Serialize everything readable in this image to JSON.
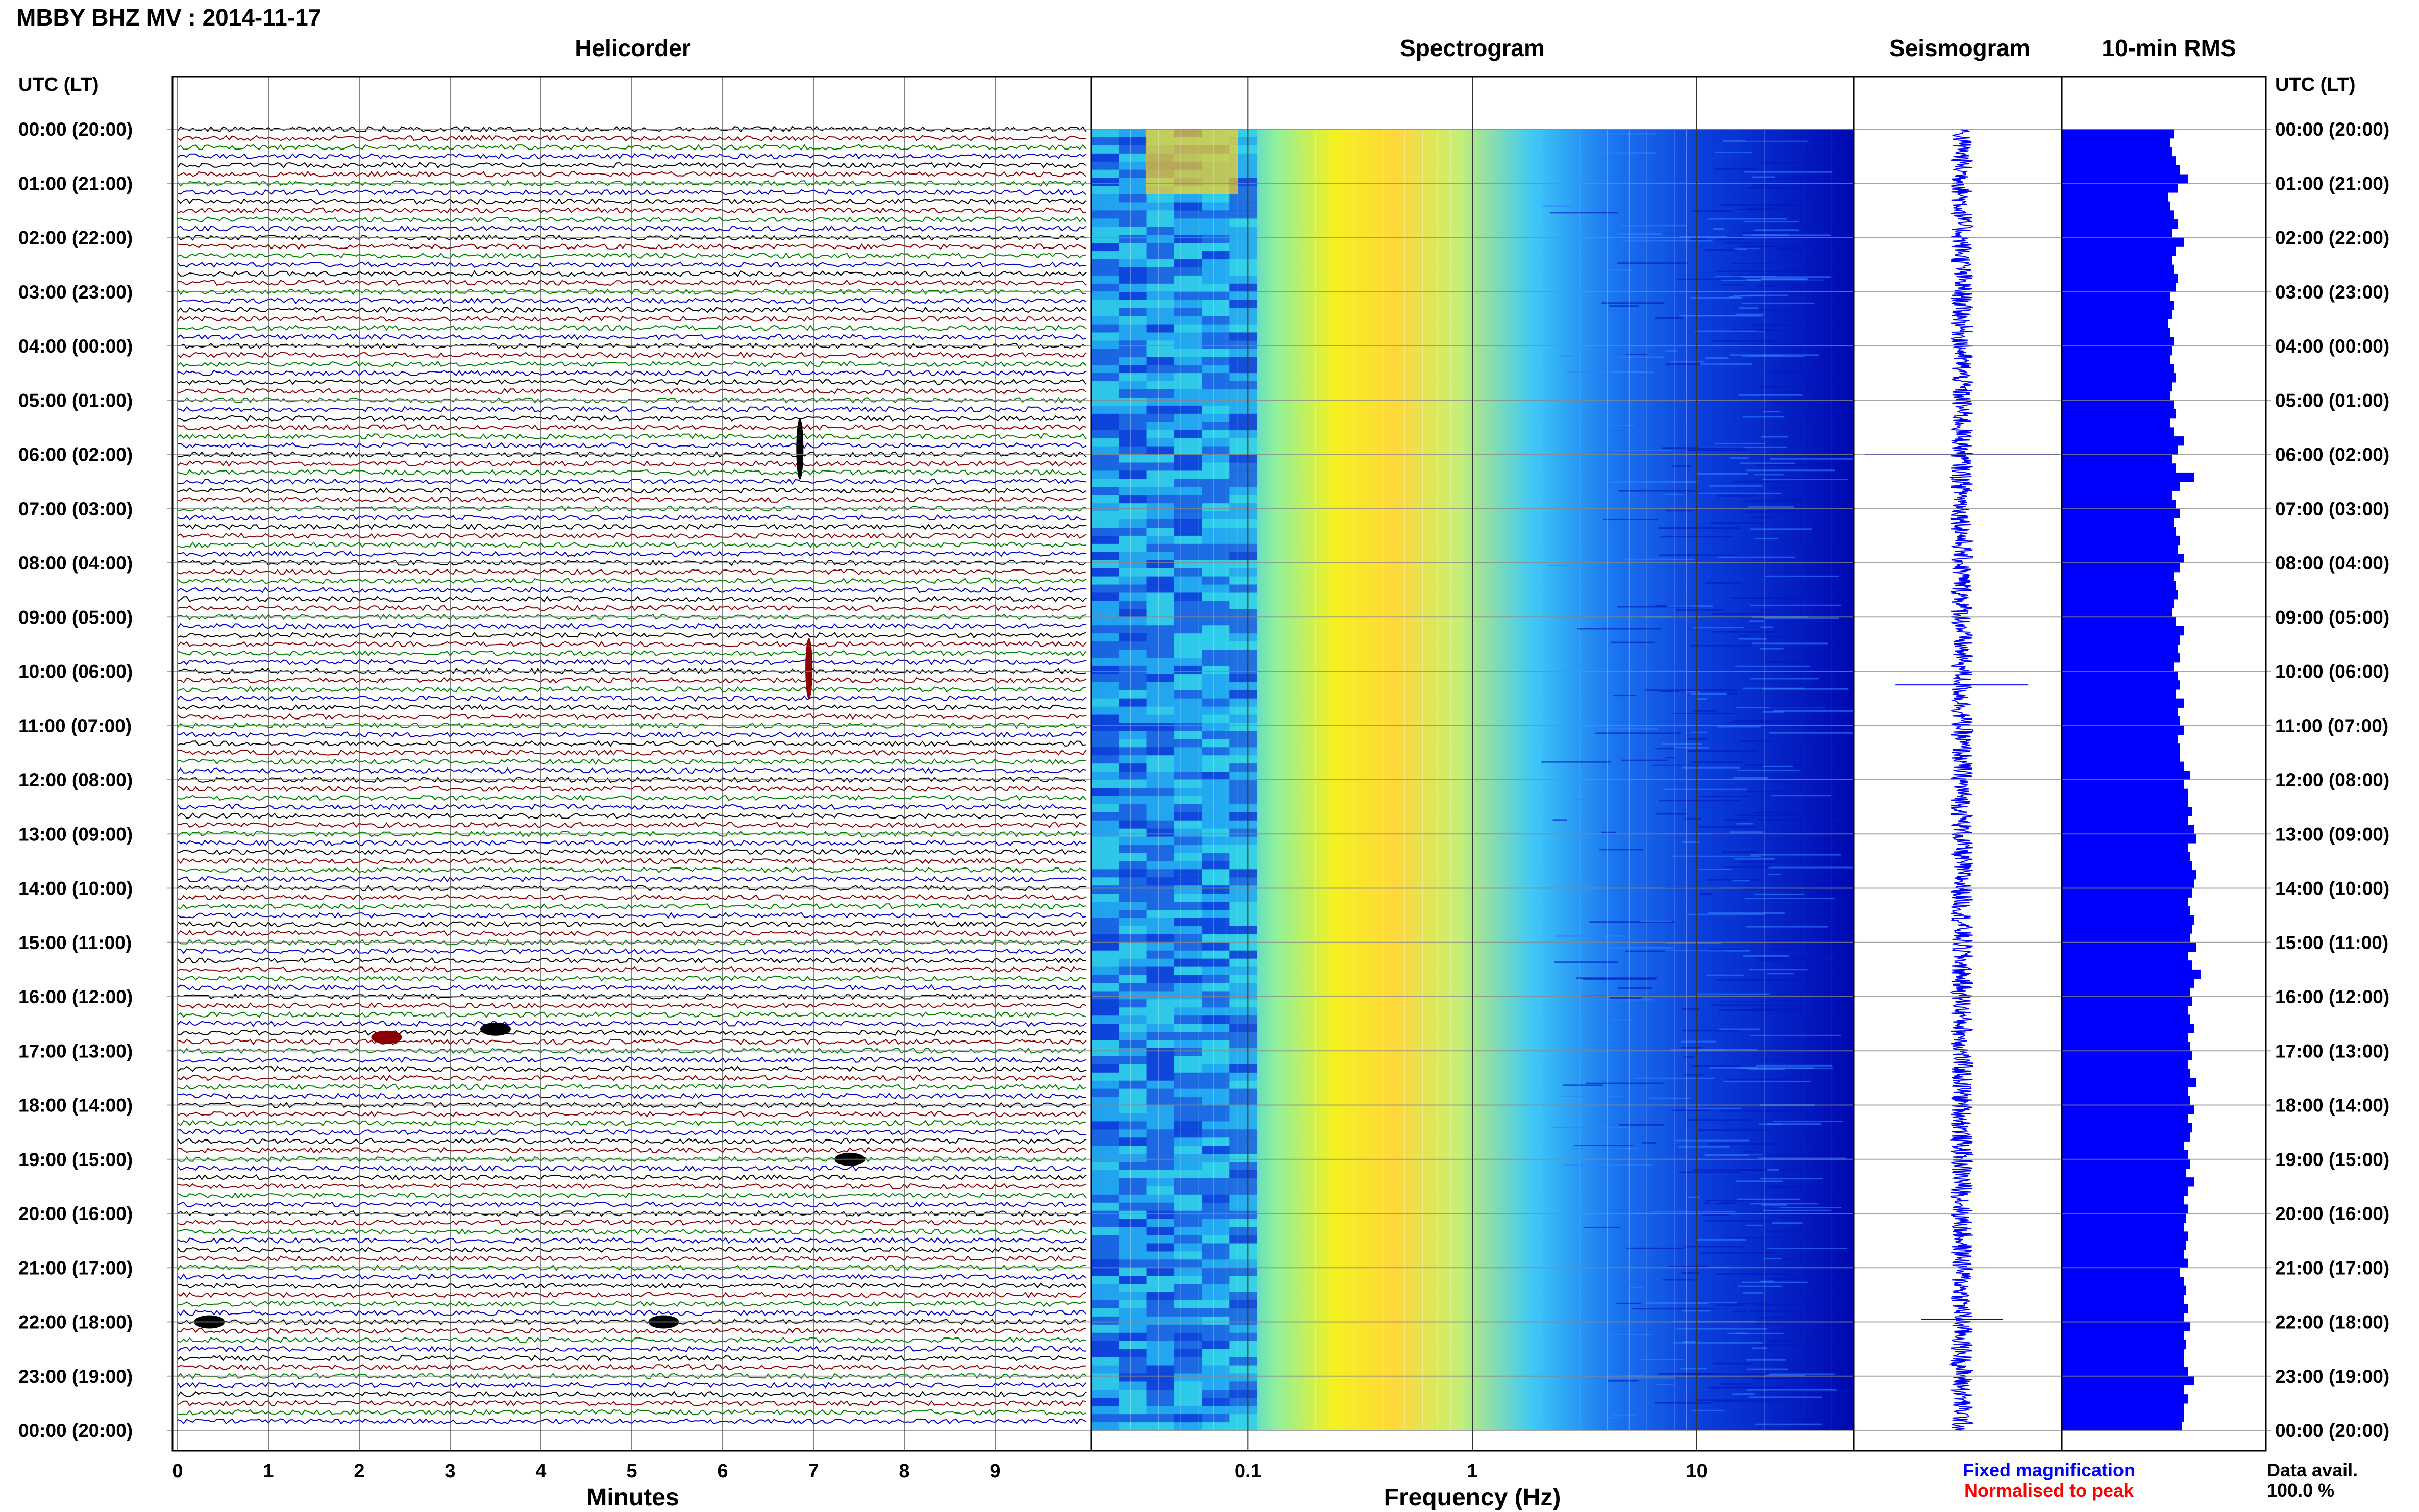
{
  "page_title": "MBBY BHZ MV : 2014-11-17",
  "panels": {
    "helicorder": "Helicorder",
    "spectrogram": "Spectrogram",
    "seismogram": "Seismogram",
    "rms": "10-min RMS"
  },
  "axis_headers": {
    "left": "UTC (LT)",
    "right": "UTC (LT)"
  },
  "row_labels": [
    "00:00 (20:00)",
    "01:00 (21:00)",
    "02:00 (22:00)",
    "03:00 (23:00)",
    "04:00 (00:00)",
    "05:00 (01:00)",
    "06:00 (02:00)",
    "07:00 (03:00)",
    "08:00 (04:00)",
    "09:00 (05:00)",
    "10:00 (06:00)",
    "11:00 (07:00)",
    "12:00 (08:00)",
    "13:00 (09:00)",
    "14:00 (10:00)",
    "15:00 (11:00)",
    "16:00 (12:00)",
    "17:00 (13:00)",
    "18:00 (14:00)",
    "19:00 (15:00)",
    "20:00 (16:00)",
    "21:00 (17:00)",
    "22:00 (18:00)",
    "23:00 (19:00)",
    "00:00 (20:00)"
  ],
  "footer": {
    "minutes_label": "Minutes",
    "frequency_label": "Frequency (Hz)",
    "legend_fixed": "Fixed magnification",
    "legend_normalised": "Normalised to peak",
    "data_avail_label": "Data avail.",
    "data_avail_value": "100.0 %"
  },
  "colors": {
    "trace_cycle": [
      "#000000",
      "#8b0000",
      "#008000",
      "#0000cc"
    ],
    "legend_fixed": "#0000ff",
    "legend_normalised": "#ff0000",
    "rms_bars": "#0000ff",
    "seismogram": "#0000ff"
  },
  "chart_data": [
    {
      "type": "line",
      "name": "helicorder",
      "xlabel": "Minutes",
      "x_ticks": [
        "0",
        "1",
        "2",
        "3",
        "4",
        "5",
        "6",
        "7",
        "8",
        "9"
      ],
      "xlim": [
        0,
        10
      ],
      "rows_per_hour": 6,
      "events": [
        {
          "hour": 5.9,
          "minute": 6.85,
          "amplitude": "large",
          "color": "#000000"
        },
        {
          "hour": 9.95,
          "minute": 6.95,
          "amplitude": "large",
          "color": "#8b0000"
        },
        {
          "hour": 16.6,
          "minute": 3.5,
          "amplitude": "medium",
          "color": "#000000"
        },
        {
          "hour": 16.75,
          "minute": 2.3,
          "amplitude": "medium",
          "color": "#8b0000"
        },
        {
          "hour": 19.0,
          "minute": 7.4,
          "amplitude": "medium",
          "color": "#000000"
        },
        {
          "hour": 22.0,
          "minute": 0.35,
          "amplitude": "medium",
          "color": "#000000"
        },
        {
          "hour": 22.0,
          "minute": 5.35,
          "amplitude": "medium",
          "color": "#000000"
        }
      ]
    },
    {
      "type": "heatmap",
      "name": "spectrogram",
      "xlabel": "Frequency (Hz)",
      "x_scale": "log",
      "xlim": [
        0.02,
        50
      ],
      "x_ticks": [
        "0.1",
        "1",
        "10"
      ],
      "peak_band_hz": [
        0.15,
        0.8
      ],
      "colormap": [
        "#0000c8",
        "#0050ff",
        "#00c8ff",
        "#80ff80",
        "#ffff00",
        "#ff8000"
      ]
    },
    {
      "type": "line",
      "name": "seismogram",
      "spikes_hour": [
        6.0,
        10.25,
        21.95
      ]
    },
    {
      "type": "bar",
      "name": "10-min RMS",
      "orientation": "horizontal",
      "xlim": [
        0,
        1
      ],
      "values": [
        0.55,
        0.53,
        0.54,
        0.56,
        0.58,
        0.62,
        0.57,
        0.52,
        0.53,
        0.55,
        0.57,
        0.54,
        0.6,
        0.56,
        0.54,
        0.55,
        0.57,
        0.56,
        0.53,
        0.55,
        0.54,
        0.52,
        0.53,
        0.55,
        0.54,
        0.53,
        0.55,
        0.56,
        0.54,
        0.53,
        0.55,
        0.56,
        0.53,
        0.55,
        0.6,
        0.57,
        0.54,
        0.56,
        0.65,
        0.58,
        0.54,
        0.56,
        0.58,
        0.55,
        0.56,
        0.58,
        0.57,
        0.6,
        0.58,
        0.55,
        0.56,
        0.57,
        0.55,
        0.54,
        0.56,
        0.6,
        0.58,
        0.57,
        0.58,
        0.55,
        0.57,
        0.58,
        0.56,
        0.6,
        0.57,
        0.58,
        0.6,
        0.57,
        0.58,
        0.58,
        0.6,
        0.63,
        0.6,
        0.62,
        0.62,
        0.64,
        0.62,
        0.65,
        0.66,
        0.62,
        0.63,
        0.64,
        0.66,
        0.65,
        0.64,
        0.62,
        0.63,
        0.65,
        0.64,
        0.63,
        0.66,
        0.62,
        0.64,
        0.68,
        0.65,
        0.63,
        0.64,
        0.62,
        0.63,
        0.65,
        0.62,
        0.63,
        0.64,
        0.62,
        0.63,
        0.66,
        0.62,
        0.63,
        0.65,
        0.62,
        0.64,
        0.63,
        0.6,
        0.62,
        0.63,
        0.61,
        0.65,
        0.62,
        0.6,
        0.62,
        0.61,
        0.6,
        0.62,
        0.61,
        0.6,
        0.62,
        0.58,
        0.6,
        0.61,
        0.6,
        0.62,
        0.6,
        0.63,
        0.6,
        0.61,
        0.6,
        0.6,
        0.62,
        0.65,
        0.6,
        0.62,
        0.6,
        0.6,
        0.59
      ]
    }
  ]
}
